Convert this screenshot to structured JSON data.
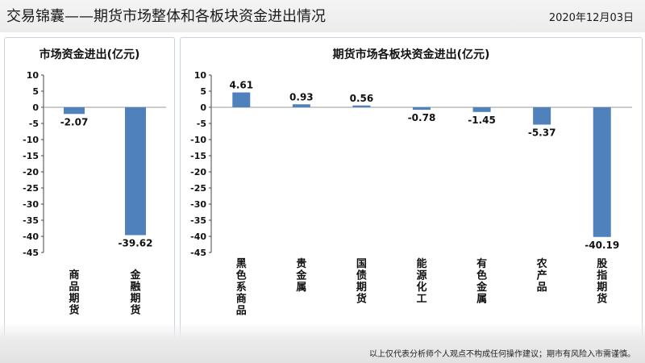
{
  "header": {
    "title": "交易锦囊——期货市场整体和各板块资金进出情况",
    "date": "2020年12月03日"
  },
  "footer": {
    "disclaimer": "以上仅代表分析师个人观点不构成任何操作建议；期市有风险入市需谨慎。"
  },
  "colors": {
    "bar": "#4f81bd",
    "axis": "#000000"
  },
  "chart_data": [
    {
      "type": "bar",
      "title": "市场资金进出(亿元)",
      "categories": [
        "商品期货",
        "金融期货"
      ],
      "values": [
        -2.07,
        -39.62
      ],
      "value_labels": [
        "-2.07",
        "-39.62"
      ],
      "ylim": [
        -45,
        10
      ],
      "yticks": [
        "10",
        "5",
        "0",
        "-5",
        "-10",
        "-15",
        "-20",
        "-25",
        "-30",
        "-35",
        "-40",
        "-45"
      ],
      "grid": false
    },
    {
      "type": "bar",
      "title": "期货市场各板块资金进出(亿元)",
      "categories": [
        "黑色系商品",
        "贵金属",
        "国债期货",
        "能源化工",
        "有色金属",
        "农产品",
        "股指期货"
      ],
      "values": [
        4.61,
        0.93,
        0.56,
        -0.78,
        -1.45,
        -5.37,
        -40.19
      ],
      "value_labels": [
        "4.61",
        "0.93",
        "0.56",
        "-0.78",
        "-1.45",
        "-5.37",
        "-40.19"
      ],
      "ylim": [
        -45,
        10
      ],
      "yticks": [
        "10",
        "5",
        "0",
        "-5",
        "-10",
        "-15",
        "-20",
        "-25",
        "-30",
        "-35",
        "-40",
        "-45"
      ],
      "grid": false
    }
  ]
}
